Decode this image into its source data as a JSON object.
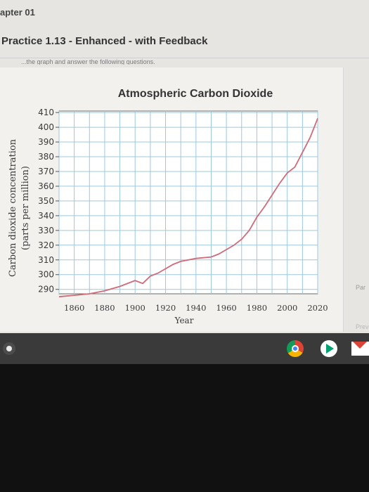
{
  "page": {
    "chapter": "apter 01",
    "assignment_title": "Practice 1.13 - Enhanced - with Feedback",
    "cut_off_instruction": "...the graph and answer the following questions.",
    "side_tabs": {
      "part": "Par",
      "prev": "Prev"
    }
  },
  "taskbar": {
    "icons": [
      "launcher-icon",
      "chrome-icon",
      "play-store-icon",
      "gmail-icon"
    ]
  },
  "colors": {
    "line": "#d06b79",
    "grid": "#9cc9dc",
    "panel": "#f2f1ee",
    "text": "#333333"
  },
  "chart_data": {
    "type": "line",
    "title": "Atmospheric Carbon Dioxide",
    "xlabel": "Year",
    "ylabel": "Carbon dioxide concentration",
    "ylabel_units": "(parts per million)",
    "x_ticks": [
      "1860",
      "1880",
      "1900",
      "1920",
      "1940",
      "1960",
      "1980",
      "2000",
      "2020"
    ],
    "y_ticks": [
      "290",
      "300",
      "310",
      "320",
      "330",
      "340",
      "350",
      "360",
      "370",
      "380",
      "390",
      "400",
      "410"
    ],
    "xlim": [
      1850,
      2020
    ],
    "ylim": [
      287,
      411
    ],
    "grid": true,
    "series": [
      {
        "x": [
          1850,
          1860,
          1870,
          1880,
          1890,
          1900,
          1905,
          1910,
          1915,
          1920,
          1925,
          1930,
          1940,
          1950,
          1955,
          1960,
          1965,
          1970,
          1975,
          1980,
          1985,
          1990,
          1995,
          2000,
          2005,
          2010,
          2015,
          2020
        ],
        "values": [
          285,
          286,
          287,
          289,
          292,
          296,
          294,
          299,
          301,
          304,
          307,
          309,
          311,
          312,
          314,
          317,
          320,
          324,
          330,
          339,
          346,
          354,
          362,
          369,
          373,
          383,
          393,
          406
        ]
      }
    ]
  }
}
